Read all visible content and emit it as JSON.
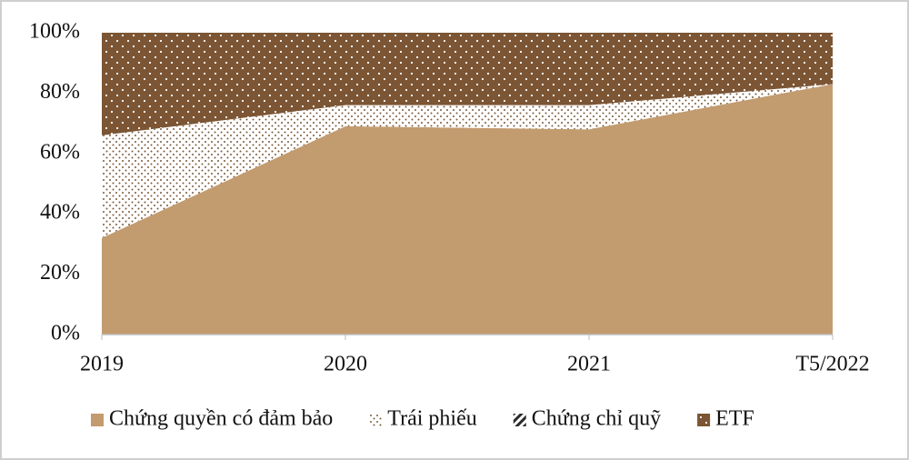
{
  "chart_data": {
    "type": "stacked_area",
    "categories": [
      "2019",
      "2020",
      "2021",
      "T5/2022"
    ],
    "series": [
      {
        "name": "Chứng quyền có đảm bảo",
        "color": "#c29b6f",
        "pattern": "solid",
        "values": [
          32,
          69,
          68,
          83
        ]
      },
      {
        "name": "Trái phiếu",
        "color": "#7a5a3a",
        "pattern": "dots",
        "values": [
          34,
          7,
          8,
          0
        ]
      },
      {
        "name": "Chứng chỉ quỹ",
        "color": "#2b2b2b",
        "pattern": "hatch",
        "values": [
          0,
          0,
          0,
          0
        ]
      },
      {
        "name": "ETF",
        "color": "#7b5534",
        "pattern": "light-dots",
        "values": [
          34,
          24,
          24,
          17
        ]
      }
    ],
    "ylim": [
      0,
      100
    ],
    "yticks": [
      {
        "value": 0,
        "label": "0%"
      },
      {
        "value": 20,
        "label": "20%"
      },
      {
        "value": 40,
        "label": "40%"
      },
      {
        "value": 60,
        "label": "60%"
      },
      {
        "value": 80,
        "label": "80%"
      },
      {
        "value": 100,
        "label": "100%"
      }
    ],
    "legend": "bottom",
    "grid": false
  }
}
